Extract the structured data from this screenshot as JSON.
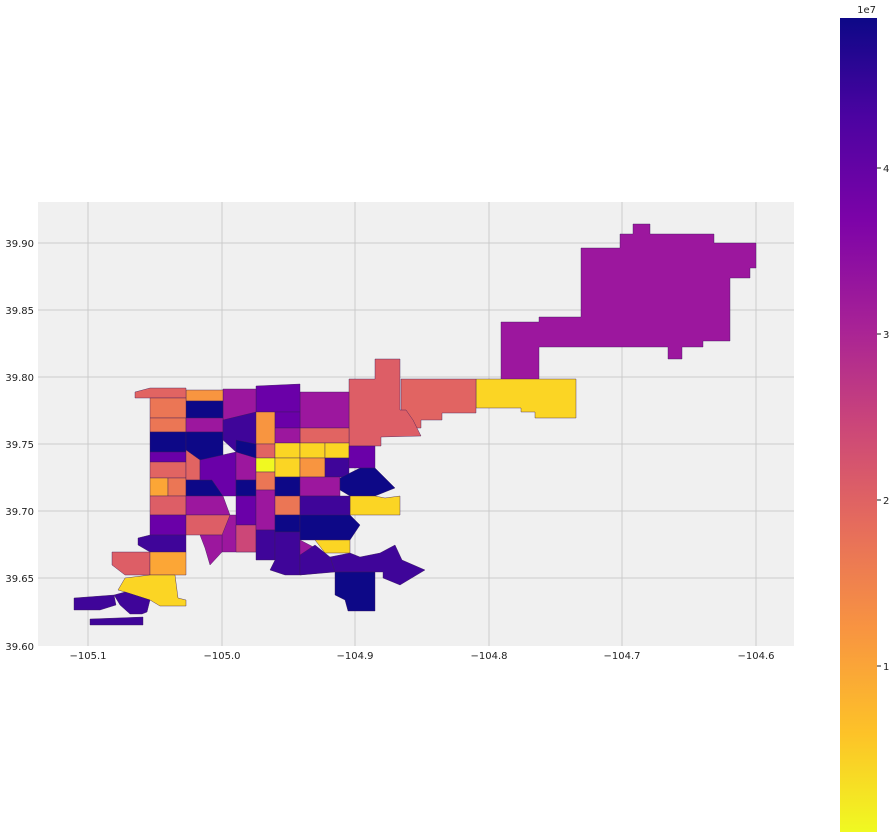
{
  "chart_data": {
    "type": "choropleth",
    "title": "",
    "xlabel": "",
    "ylabel": "",
    "xlim": [
      -105.14,
      -104.57
    ],
    "ylim": [
      39.6,
      39.93
    ],
    "xticks": [
      "−105.1",
      "−105.0",
      "−104.9",
      "−104.8",
      "−104.7",
      "−104.6"
    ],
    "yticks": [
      "39.60",
      "39.65",
      "39.70",
      "39.75",
      "39.80",
      "39.85",
      "39.90"
    ],
    "grid": true,
    "colorbar": {
      "colormap": "plasma",
      "reversed": true,
      "exponent_label": "1e7",
      "tick_labels": [
        "1",
        "2",
        "3",
        "4"
      ],
      "ticks": [
        1,
        2,
        3,
        4
      ],
      "range": [
        0,
        4.5
      ],
      "placement": "right"
    },
    "colors": {
      "low": "#f0f921",
      "mid": "#cc4778",
      "high": "#0d0887",
      "axes_bg": "#f0f0f0"
    }
  }
}
